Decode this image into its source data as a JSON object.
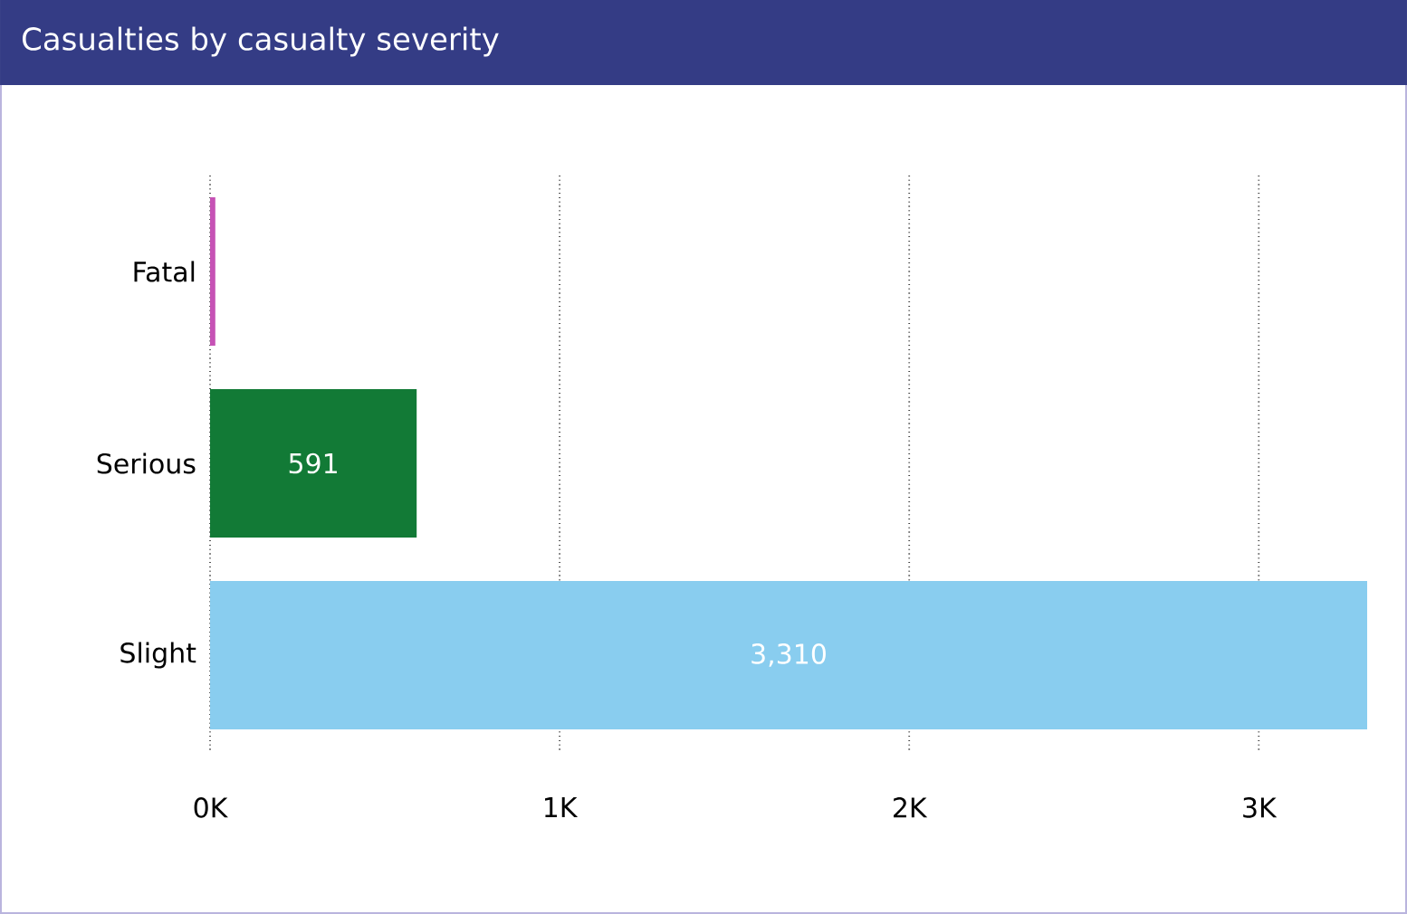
{
  "chart_data": {
    "type": "bar",
    "orientation": "horizontal",
    "title": "Casualties by casualty severity",
    "categories": [
      "Fatal",
      "Serious",
      "Slight"
    ],
    "values": [
      15,
      591,
      3310
    ],
    "colors": [
      "#c652b5",
      "#127a36",
      "#89cdef"
    ],
    "value_labels": [
      null,
      "591",
      "3,310"
    ],
    "xlim": [
      0,
      3310
    ],
    "xticks": [
      {
        "value": 0,
        "label": "0K"
      },
      {
        "value": 1000,
        "label": "1K"
      },
      {
        "value": 2000,
        "label": "2K"
      },
      {
        "value": 3000,
        "label": "3K"
      }
    ],
    "grid": "x"
  }
}
